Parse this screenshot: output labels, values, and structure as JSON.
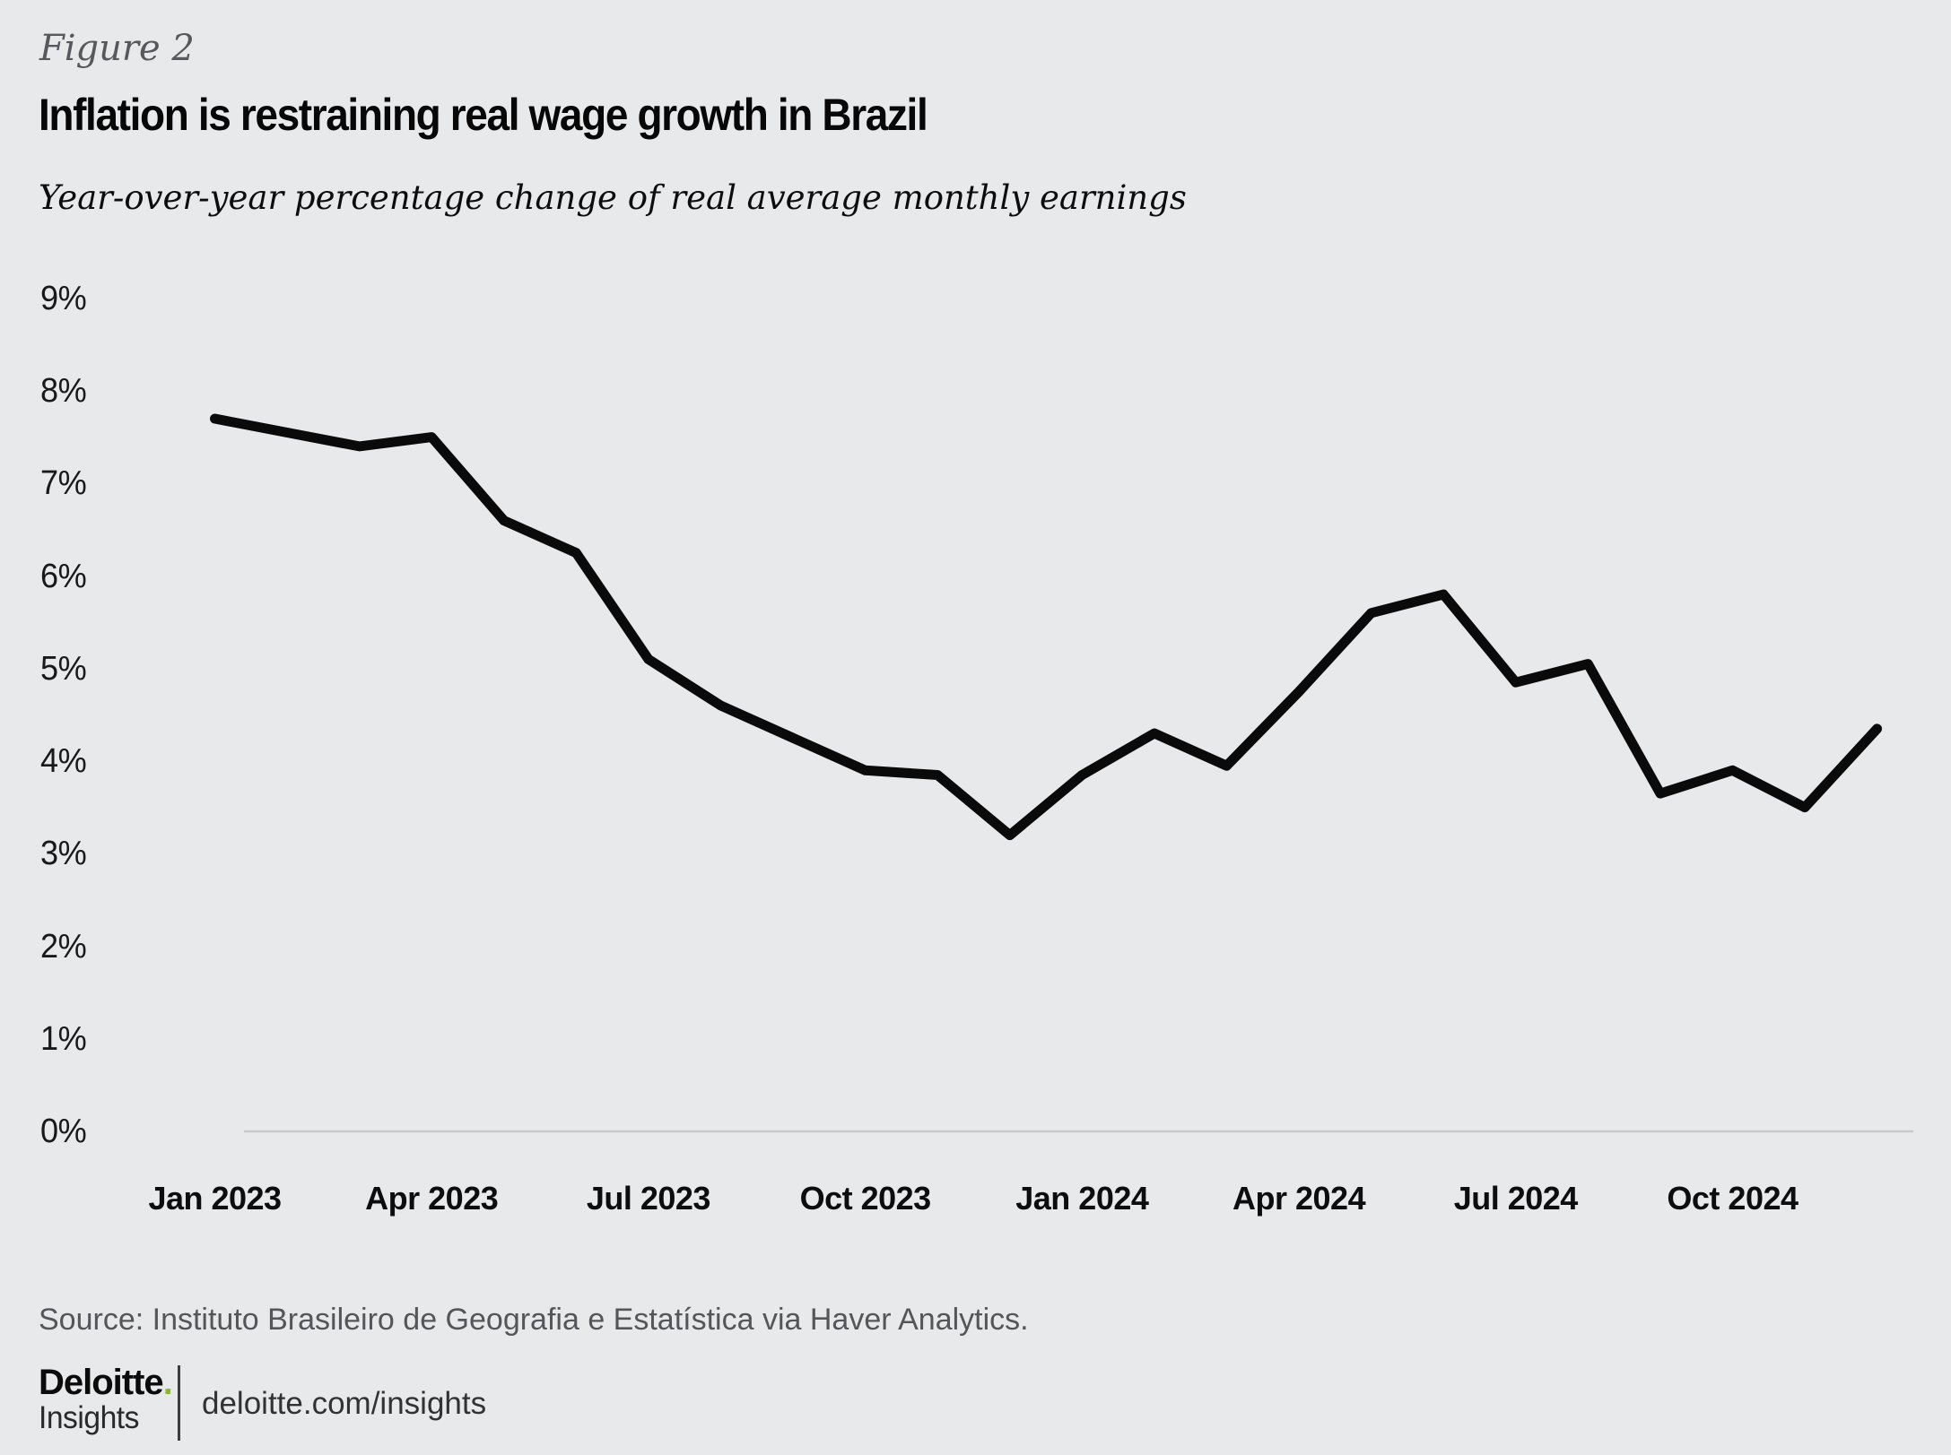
{
  "figure_label": "Figure 2",
  "title": "Inflation is restraining real wage growth in Brazil",
  "subtitle": "Year-over-year percentage change of real average monthly earnings",
  "chart_data": {
    "type": "line",
    "x": [
      "Jan 2023",
      "Feb 2023",
      "Mar 2023",
      "Apr 2023",
      "May 2023",
      "Jun 2023",
      "Jul 2023",
      "Aug 2023",
      "Sep 2023",
      "Oct 2023",
      "Nov 2023",
      "Dec 2023",
      "Jan 2024",
      "Feb 2024",
      "Mar 2024",
      "Apr 2024",
      "May 2024",
      "Jun 2024",
      "Jul 2024",
      "Aug 2024",
      "Sep 2024",
      "Oct 2024",
      "Nov 2024",
      "Dec 2024"
    ],
    "values": [
      7.7,
      7.55,
      7.4,
      7.5,
      6.6,
      6.25,
      5.1,
      4.6,
      4.25,
      3.9,
      3.85,
      3.2,
      3.85,
      4.3,
      3.95,
      4.75,
      5.6,
      5.8,
      4.85,
      5.05,
      3.65,
      3.9,
      3.5,
      4.35
    ],
    "title": "Inflation is restraining real wage growth in Brazil",
    "subtitle": "Year-over-year percentage change of real average monthly earnings",
    "xlabel": "",
    "ylabel": "",
    "ylim": [
      0,
      9
    ],
    "y_tick_labels": [
      "0%",
      "1%",
      "2%",
      "3%",
      "4%",
      "5%",
      "6%",
      "7%",
      "8%",
      "9%"
    ],
    "x_tick_labels": [
      "Jan 2023",
      "Apr 2023",
      "Jul 2023",
      "Oct 2023",
      "Jan 2024",
      "Apr 2024",
      "Jul 2024",
      "Oct 2024"
    ],
    "x_tick_month_indices": [
      0,
      3,
      6,
      9,
      12,
      15,
      18,
      21
    ],
    "grid": "zero-baseline-only",
    "legend": "none",
    "line_color": "#0a0a0b",
    "baseline_color": "#c9cacc",
    "background_color": "#e8e9ea"
  },
  "footer": {
    "source": "Source: Instituto Brasileiro de Geografia e Estatística via Haver Analytics.",
    "logo": {
      "brand_text": "Deloitte",
      "brand_dot": ".",
      "sub_text": "Insights",
      "url_text": "deloitte.com/insights",
      "dot_color": "#86bc25"
    }
  },
  "colors": {
    "background": "#e8e9ea",
    "line": "#0a0a0b",
    "baseline": "#c9cacc",
    "muted_text": "#53565a",
    "accent_green": "#86bc25"
  }
}
